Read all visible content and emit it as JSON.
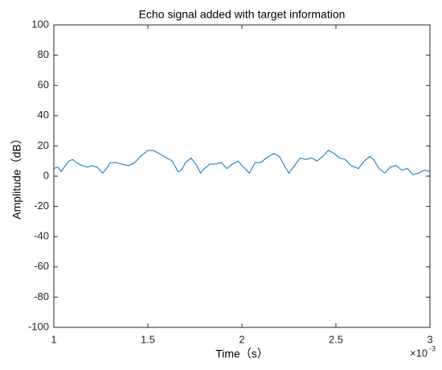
{
  "chart_data": {
    "type": "line",
    "title": "Echo signal added with target information",
    "x_label": "Time（s）",
    "y_label": "Amplitude（dB）",
    "x_scale": {
      "base": "×10",
      "exponent": "-3"
    },
    "x": [
      1.0,
      1.02,
      1.04,
      1.05,
      1.08,
      1.1,
      1.12,
      1.15,
      1.18,
      1.2,
      1.23,
      1.26,
      1.28,
      1.3,
      1.33,
      1.36,
      1.4,
      1.43,
      1.46,
      1.5,
      1.53,
      1.56,
      1.6,
      1.63,
      1.66,
      1.68,
      1.7,
      1.73,
      1.76,
      1.78,
      1.8,
      1.83,
      1.86,
      1.89,
      1.92,
      1.95,
      1.98,
      2.0,
      2.04,
      2.07,
      2.1,
      2.13,
      2.17,
      2.2,
      2.23,
      2.25,
      2.28,
      2.31,
      2.34,
      2.37,
      2.4,
      2.43,
      2.46,
      2.49,
      2.52,
      2.55,
      2.58,
      2.62,
      2.65,
      2.68,
      2.7,
      2.73,
      2.76,
      2.79,
      2.82,
      2.85,
      2.88,
      2.91,
      2.94,
      2.97,
      3.0
    ],
    "series": [
      {
        "color": "#0072bd",
        "values": [
          5,
          6,
          3,
          5,
          10,
          11,
          9,
          7,
          6,
          7,
          6,
          2,
          5,
          9,
          9,
          8,
          7,
          9,
          13,
          17,
          17,
          15,
          12,
          10,
          3,
          4,
          9,
          12,
          7,
          2,
          5,
          8,
          8,
          9,
          5,
          8,
          10,
          7,
          2,
          9,
          9,
          12,
          15,
          13,
          6,
          2,
          7,
          12,
          11,
          12,
          10,
          13,
          17,
          15,
          12,
          11,
          7,
          5,
          10,
          13,
          11,
          5,
          2,
          6,
          7,
          4,
          5,
          1,
          2,
          4,
          3
        ]
      }
    ],
    "xlim": [
      1,
      3
    ],
    "xticks": [
      1,
      1.5,
      2,
      2.5,
      3
    ],
    "ylim": [
      -100,
      100
    ],
    "yticks": [
      -100,
      -80,
      -60,
      -40,
      -20,
      0,
      20,
      40,
      60,
      80,
      100
    ],
    "grid": false
  }
}
